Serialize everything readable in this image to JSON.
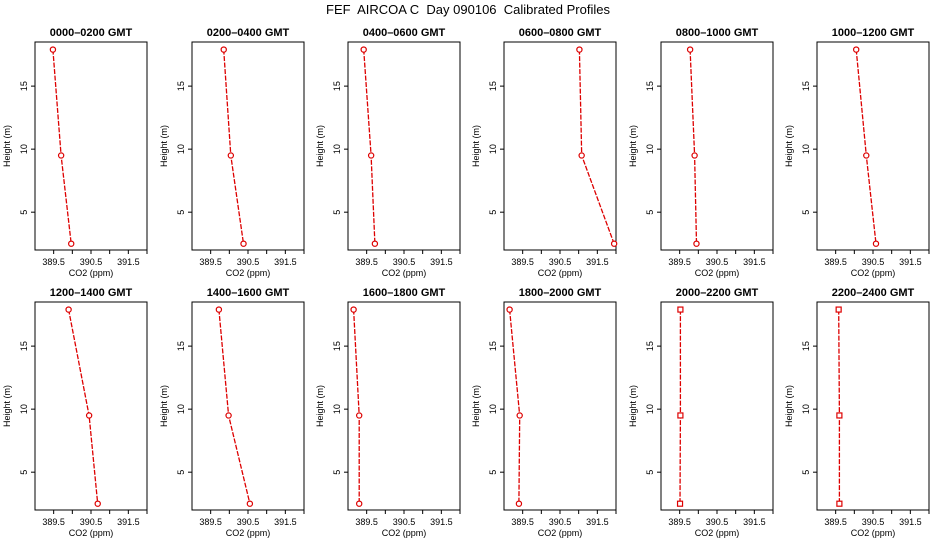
{
  "title": "FEF  AIRCOA C  Day 090106  Calibrated Profiles",
  "colors": {
    "series": "#dd0000",
    "axes": "#000000"
  },
  "chart_data": [
    {
      "type": "line",
      "title": "0000–0200 GMT",
      "xlabel": "CO2 (ppm)",
      "ylabel": "Height (m)",
      "xlim": [
        389.0,
        392.0
      ],
      "ylim": [
        2,
        18.5
      ],
      "xticks": [
        389.5,
        390.5,
        391.5
      ],
      "xtick_labels": [
        "389.5",
        "390.5",
        "391.5"
      ],
      "yticks": [
        5,
        10,
        15
      ],
      "ytick_labels": [
        "5",
        "10",
        "15"
      ],
      "marker": "circle",
      "series": [
        {
          "x": [
            389.48,
            389.7,
            389.97
          ],
          "y": [
            17.9,
            9.5,
            2.5
          ]
        }
      ]
    },
    {
      "type": "line",
      "title": "0200–0400 GMT",
      "xlabel": "CO2 (ppm)",
      "ylabel": "Height (m)",
      "xlim": [
        389.0,
        392.0
      ],
      "ylim": [
        2,
        18.5
      ],
      "xticks": [
        389.5,
        390.5,
        391.5
      ],
      "xtick_labels": [
        "389.5",
        "390.5",
        "391.5"
      ],
      "yticks": [
        5,
        10,
        15
      ],
      "ytick_labels": [
        "5",
        "10",
        "15"
      ],
      "marker": "circle",
      "series": [
        {
          "x": [
            389.85,
            390.04,
            390.38
          ],
          "y": [
            17.9,
            9.5,
            2.5
          ]
        }
      ]
    },
    {
      "type": "line",
      "title": "0400–0600 GMT",
      "xlabel": "CO2 (ppm)",
      "ylabel": "Height (m)",
      "xlim": [
        389.0,
        392.0
      ],
      "ylim": [
        2,
        18.5
      ],
      "xticks": [
        389.5,
        390.5,
        391.5
      ],
      "xtick_labels": [
        "389.5",
        "390.5",
        "391.5"
      ],
      "yticks": [
        5,
        10,
        15
      ],
      "ytick_labels": [
        "5",
        "10",
        "15"
      ],
      "marker": "circle",
      "series": [
        {
          "x": [
            389.42,
            389.62,
            389.72
          ],
          "y": [
            17.9,
            9.5,
            2.5
          ]
        }
      ]
    },
    {
      "type": "line",
      "title": "0600–0800 GMT",
      "xlabel": "CO2 (ppm)",
      "ylabel": "Height (m)",
      "xlim": [
        389.0,
        392.0
      ],
      "ylim": [
        2,
        18.5
      ],
      "xticks": [
        389.5,
        390.5,
        391.5
      ],
      "xtick_labels": [
        "389.5",
        "390.5",
        "391.5"
      ],
      "yticks": [
        5,
        10,
        15
      ],
      "ytick_labels": [
        "5",
        "10",
        "15"
      ],
      "marker": "circle",
      "series": [
        {
          "x": [
            391.02,
            391.08,
            391.95
          ],
          "y": [
            17.9,
            9.5,
            2.5
          ]
        }
      ]
    },
    {
      "type": "line",
      "title": "0800–1000 GMT",
      "xlabel": "CO2 (ppm)",
      "ylabel": "Height (m)",
      "xlim": [
        389.0,
        392.0
      ],
      "ylim": [
        2,
        18.5
      ],
      "xticks": [
        389.5,
        390.5,
        391.5
      ],
      "xtick_labels": [
        "389.5",
        "390.5",
        "391.5"
      ],
      "yticks": [
        5,
        10,
        15
      ],
      "ytick_labels": [
        "5",
        "10",
        "15"
      ],
      "marker": "circle",
      "series": [
        {
          "x": [
            389.78,
            389.9,
            389.95
          ],
          "y": [
            17.9,
            9.5,
            2.5
          ]
        }
      ]
    },
    {
      "type": "line",
      "title": "1000–1200 GMT",
      "xlabel": "CO2 (ppm)",
      "ylabel": "Height (m)",
      "xlim": [
        389.0,
        392.0
      ],
      "ylim": [
        2,
        18.5
      ],
      "xticks": [
        389.5,
        390.5,
        391.5
      ],
      "xtick_labels": [
        "389.5",
        "390.5",
        "391.5"
      ],
      "yticks": [
        5,
        10,
        15
      ],
      "ytick_labels": [
        "5",
        "10",
        "15"
      ],
      "marker": "circle",
      "series": [
        {
          "x": [
            390.05,
            390.32,
            390.58
          ],
          "y": [
            17.9,
            9.5,
            2.5
          ]
        }
      ]
    },
    {
      "type": "line",
      "title": "1200–1400 GMT",
      "xlabel": "CO2 (ppm)",
      "ylabel": "Height (m)",
      "xlim": [
        389.0,
        392.0
      ],
      "ylim": [
        2,
        18.5
      ],
      "xticks": [
        389.5,
        390.5,
        391.5
      ],
      "xtick_labels": [
        "389.5",
        "390.5",
        "391.5"
      ],
      "yticks": [
        5,
        10,
        15
      ],
      "ytick_labels": [
        "5",
        "10",
        "15"
      ],
      "marker": "circle",
      "series": [
        {
          "x": [
            389.9,
            390.45,
            390.68
          ],
          "y": [
            17.9,
            9.5,
            2.5
          ]
        }
      ]
    },
    {
      "type": "line",
      "title": "1400–1600 GMT",
      "xlabel": "CO2 (ppm)",
      "ylabel": "Height (m)",
      "xlim": [
        389.0,
        392.0
      ],
      "ylim": [
        2,
        18.5
      ],
      "xticks": [
        389.5,
        390.5,
        391.5
      ],
      "xtick_labels": [
        "389.5",
        "390.5",
        "391.5"
      ],
      "yticks": [
        5,
        10,
        15
      ],
      "ytick_labels": [
        "5",
        "10",
        "15"
      ],
      "marker": "circle",
      "series": [
        {
          "x": [
            389.72,
            389.98,
            390.55
          ],
          "y": [
            17.9,
            9.5,
            2.5
          ]
        }
      ]
    },
    {
      "type": "line",
      "title": "1600–1800 GMT",
      "xlabel": "CO2 (ppm)",
      "ylabel": "Height (m)",
      "xlim": [
        389.0,
        392.0
      ],
      "ylim": [
        2,
        18.5
      ],
      "xticks": [
        389.5,
        390.5,
        391.5
      ],
      "xtick_labels": [
        "389.5",
        "390.5",
        "391.5"
      ],
      "yticks": [
        5,
        10,
        15
      ],
      "ytick_labels": [
        "5",
        "10",
        "15"
      ],
      "marker": "circle",
      "series": [
        {
          "x": [
            389.15,
            389.3,
            389.3
          ],
          "y": [
            17.9,
            9.5,
            2.5
          ]
        }
      ]
    },
    {
      "type": "line",
      "title": "1800–2000 GMT",
      "xlabel": "CO2 (ppm)",
      "ylabel": "Height (m)",
      "xlim": [
        389.0,
        392.0
      ],
      "ylim": [
        2,
        18.5
      ],
      "xticks": [
        389.5,
        390.5,
        391.5
      ],
      "xtick_labels": [
        "389.5",
        "390.5",
        "391.5"
      ],
      "yticks": [
        5,
        10,
        15
      ],
      "ytick_labels": [
        "5",
        "10",
        "15"
      ],
      "marker": "circle",
      "series": [
        {
          "x": [
            389.15,
            389.42,
            389.4
          ],
          "y": [
            17.9,
            9.5,
            2.5
          ]
        }
      ]
    },
    {
      "type": "line",
      "title": "2000–2200 GMT",
      "xlabel": "CO2 (ppm)",
      "ylabel": "Height (m)",
      "xlim": [
        389.0,
        392.0
      ],
      "ylim": [
        2,
        18.5
      ],
      "xticks": [
        389.5,
        390.5,
        391.5
      ],
      "xtick_labels": [
        "389.5",
        "390.5",
        "391.5"
      ],
      "yticks": [
        5,
        10,
        15
      ],
      "ytick_labels": [
        "5",
        "10",
        "15"
      ],
      "marker": "square",
      "series": [
        {
          "x": [
            389.52,
            389.52,
            389.51
          ],
          "y": [
            17.9,
            9.5,
            2.5
          ]
        }
      ]
    },
    {
      "type": "line",
      "title": "2200–2400 GMT",
      "xlabel": "CO2 (ppm)",
      "ylabel": "Height (m)",
      "xlim": [
        389.0,
        392.0
      ],
      "ylim": [
        2,
        18.5
      ],
      "xticks": [
        389.5,
        390.5,
        391.5
      ],
      "xtick_labels": [
        "389.5",
        "390.5",
        "391.5"
      ],
      "yticks": [
        5,
        10,
        15
      ],
      "ytick_labels": [
        "5",
        "10",
        "15"
      ],
      "marker": "square",
      "series": [
        {
          "x": [
            389.58,
            389.6,
            389.6
          ],
          "y": [
            17.9,
            9.5,
            2.5
          ]
        }
      ]
    }
  ]
}
